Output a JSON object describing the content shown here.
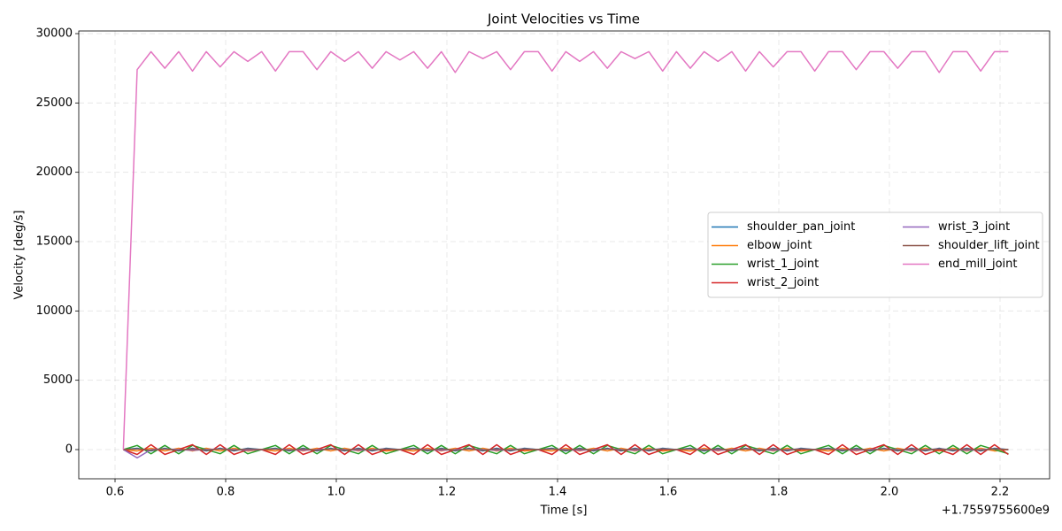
{
  "chart_data": {
    "type": "line",
    "title": "Joint Velocities vs Time",
    "x_label": "Time [s]",
    "y_label": "Velocity [deg/s]",
    "x_offset_label": "+1.7559755600e9",
    "grid": true,
    "legend": {
      "loc": "center right",
      "ncol": 2
    },
    "xlim": [
      0.5344,
      2.2896
    ],
    "ylim": [
      -2106,
      30191
    ],
    "xticks": [
      0.6,
      0.8,
      {
        "value": 1,
        "label": "1.0"
      },
      1.2,
      1.4,
      1.6,
      1.8,
      {
        "value": 2,
        "label": "2.0"
      },
      2.2
    ],
    "yticks": [
      0,
      5000,
      10000,
      15000,
      20000,
      25000,
      30000
    ],
    "x": [
      0.615,
      0.64,
      0.665,
      0.69,
      0.715,
      0.74,
      0.765,
      0.79,
      0.815,
      0.84,
      0.865,
      0.89,
      0.915,
      0.94,
      0.965,
      0.99,
      1.015,
      1.04,
      1.065,
      1.09,
      1.115,
      1.14,
      1.165,
      1.19,
      1.215,
      1.24,
      1.265,
      1.29,
      1.315,
      1.34,
      1.365,
      1.39,
      1.415,
      1.44,
      1.465,
      1.49,
      1.515,
      1.54,
      1.565,
      1.59,
      1.615,
      1.64,
      1.665,
      1.69,
      1.715,
      1.74,
      1.765,
      1.79,
      1.815,
      1.84,
      1.865,
      1.89,
      1.915,
      1.94,
      1.965,
      1.99,
      2.015,
      2.04,
      2.065,
      2.09,
      2.115,
      2.14,
      2.165,
      2.19,
      2.215
    ],
    "series": [
      {
        "name": "shoulder_pan_joint",
        "color": "#1f77b4",
        "values": [
          0,
          100,
          -100,
          100,
          -100,
          100,
          -100,
          100,
          -100,
          100,
          0,
          100,
          -100,
          100,
          -100,
          100,
          -100,
          100,
          -100,
          100,
          0,
          100,
          -100,
          100,
          -100,
          100,
          -100,
          100,
          -100,
          100,
          0,
          100,
          -100,
          100,
          -100,
          100,
          -100,
          100,
          -100,
          100,
          0,
          100,
          -100,
          100,
          -100,
          100,
          -100,
          100,
          -100,
          100,
          0,
          100,
          -100,
          100,
          -100,
          100,
          -100,
          100,
          -100,
          100,
          -100,
          100,
          -100,
          100,
          0
        ]
      },
      {
        "name": "elbow_joint",
        "color": "#ff7f0e",
        "values": [
          0,
          -100,
          100,
          -100,
          100,
          -100,
          100,
          -100,
          100,
          -100,
          0,
          -100,
          100,
          -100,
          100,
          -100,
          100,
          -100,
          100,
          -100,
          0,
          -100,
          100,
          -100,
          100,
          -100,
          100,
          -100,
          100,
          -100,
          0,
          -100,
          100,
          -100,
          100,
          -100,
          100,
          -100,
          100,
          -100,
          0,
          -100,
          100,
          -100,
          100,
          -100,
          100,
          -100,
          100,
          -100,
          0,
          -100,
          100,
          -100,
          100,
          -100,
          100,
          -100,
          100,
          -100,
          100,
          -100,
          100,
          -100,
          0
        ]
      },
      {
        "name": "wrist_1_joint",
        "color": "#2ca02c",
        "values": [
          0,
          300,
          -300,
          300,
          -300,
          300,
          0,
          -300,
          300,
          -300,
          0,
          300,
          -300,
          300,
          -300,
          300,
          0,
          -300,
          300,
          -300,
          0,
          300,
          -300,
          300,
          -300,
          300,
          0,
          -300,
          300,
          -300,
          0,
          300,
          -300,
          300,
          -300,
          300,
          0,
          -300,
          300,
          -300,
          0,
          300,
          -300,
          300,
          -300,
          300,
          0,
          -300,
          300,
          -300,
          0,
          300,
          -300,
          300,
          -300,
          300,
          0,
          -300,
          300,
          -300,
          300,
          -300,
          300,
          0,
          -300
        ]
      },
      {
        "name": "wrist_2_joint",
        "color": "#d62728",
        "values": [
          0,
          -350,
          350,
          -350,
          0,
          350,
          -350,
          350,
          -350,
          0,
          0,
          -350,
          350,
          -350,
          0,
          350,
          -350,
          350,
          -350,
          0,
          0,
          -350,
          350,
          -350,
          0,
          350,
          -350,
          350,
          -350,
          0,
          0,
          -350,
          350,
          -350,
          0,
          350,
          -350,
          350,
          -350,
          0,
          0,
          -350,
          350,
          -350,
          0,
          350,
          -350,
          350,
          -350,
          0,
          0,
          -350,
          350,
          -350,
          0,
          350,
          -350,
          350,
          -350,
          0,
          -350,
          350,
          -350,
          350,
          -350
        ]
      },
      {
        "name": "wrist_3_joint",
        "color": "#9467bd",
        "values": [
          0,
          -600,
          0,
          50,
          0,
          -50,
          0,
          50,
          0,
          -50,
          0,
          50,
          0,
          -50,
          0,
          50,
          0,
          -50,
          0,
          50,
          0,
          50,
          0,
          -50,
          0,
          50,
          0,
          -50,
          0,
          50,
          0,
          50,
          0,
          -50,
          0,
          50,
          0,
          -50,
          0,
          50,
          0,
          50,
          0,
          -50,
          0,
          50,
          0,
          -50,
          0,
          50,
          0,
          50,
          0,
          -50,
          0,
          50,
          0,
          -50,
          0,
          50,
          0,
          -50,
          0,
          50,
          0
        ]
      },
      {
        "name": "shoulder_lift_joint",
        "color": "#8c564b",
        "values": [
          0,
          50,
          -50,
          50,
          -50,
          50,
          -50,
          50,
          -50,
          50,
          0,
          50,
          -50,
          50,
          -50,
          50,
          -50,
          50,
          -50,
          50,
          0,
          50,
          -50,
          50,
          -50,
          50,
          -50,
          50,
          -50,
          50,
          0,
          50,
          -50,
          50,
          -50,
          50,
          -50,
          50,
          -50,
          50,
          0,
          50,
          -50,
          50,
          -50,
          50,
          -50,
          50,
          -50,
          50,
          0,
          50,
          -50,
          50,
          -50,
          50,
          -50,
          50,
          -50,
          50,
          -50,
          50,
          -50,
          50,
          0
        ]
      },
      {
        "name": "end_mill_joint",
        "color": "#e377c2",
        "values": [
          0,
          27400,
          28700,
          27500,
          28700,
          27300,
          28700,
          27600,
          28700,
          28000,
          28700,
          27300,
          28700,
          28700,
          27400,
          28700,
          28000,
          28700,
          27500,
          28700,
          28100,
          28700,
          27500,
          28700,
          27200,
          28700,
          28200,
          28700,
          27400,
          28700,
          28700,
          27300,
          28700,
          28000,
          28700,
          27500,
          28700,
          28200,
          28700,
          27300,
          28700,
          27500,
          28700,
          28000,
          28700,
          27300,
          28700,
          27600,
          28700,
          28700,
          27300,
          28700,
          28700,
          27400,
          28700,
          28700,
          27500,
          28700,
          28700,
          27200,
          28700,
          28700,
          27300,
          28700,
          28700
        ]
      }
    ]
  }
}
